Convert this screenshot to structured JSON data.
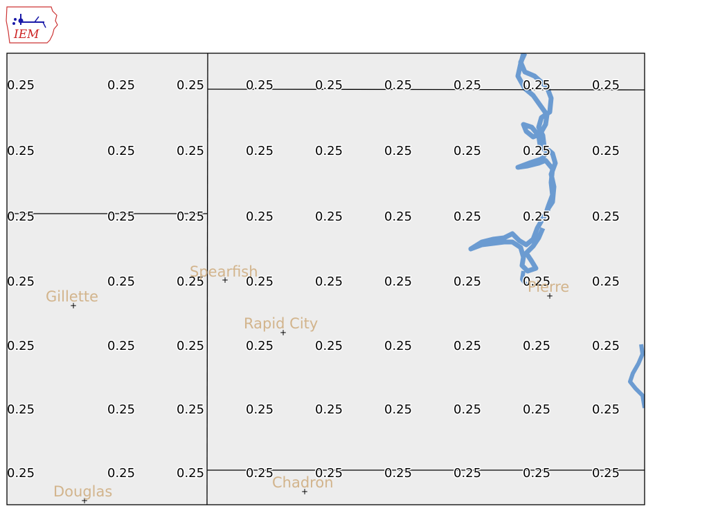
{
  "logo": {
    "text": "IEM",
    "color": "#cc2222"
  },
  "map": {
    "background": "#ededed",
    "water_color": "#6b9bd1",
    "label_color": "#d2b48c",
    "border_color": "#000000",
    "grid_value": "0.25",
    "grid_rows": 7,
    "grid_cols": 9,
    "cities": [
      {
        "name": "Spearfish",
        "id": "spearfish"
      },
      {
        "name": "Gillette",
        "id": "gillette"
      },
      {
        "name": "Rapid City",
        "id": "rapid-city"
      },
      {
        "name": "Pierre",
        "id": "pierre"
      },
      {
        "name": "Douglas",
        "id": "douglas"
      },
      {
        "name": "Chadron",
        "id": "chadron"
      }
    ]
  }
}
